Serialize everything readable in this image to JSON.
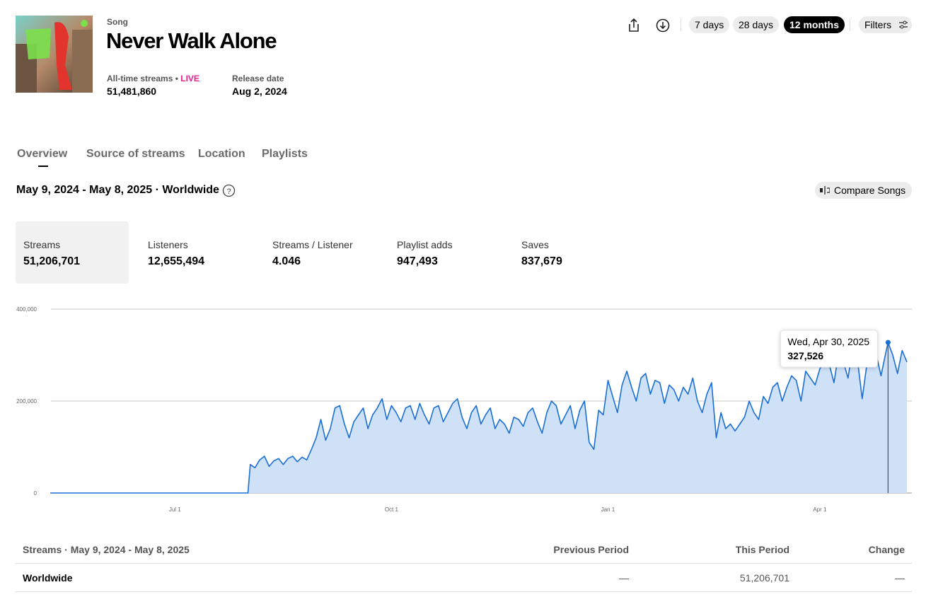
{
  "header": {
    "kind": "Song",
    "title": "Never Walk Alone",
    "alltime_label": "All-time streams",
    "live": "LIVE",
    "alltime_value": "51,481,860",
    "release_label": "Release date",
    "release_value": "Aug 2, 2024"
  },
  "range_buttons": [
    "7 days",
    "28 days",
    "12 months"
  ],
  "active_range": 2,
  "filters": "Filters",
  "tabs": [
    "Overview",
    "Source of streams",
    "Location",
    "Playlists"
  ],
  "active_tab": 0,
  "period": "May 9, 2024 - May 8, 2025 · Worldwide",
  "compare": "Compare Songs",
  "metrics": [
    {
      "label": "Streams",
      "value": "51,206,701"
    },
    {
      "label": "Listeners",
      "value": "12,655,494"
    },
    {
      "label": "Streams / Listener",
      "value": "4.046"
    },
    {
      "label": "Playlist adds",
      "value": "947,493"
    },
    {
      "label": "Saves",
      "value": "837,679"
    }
  ],
  "chart_data": {
    "type": "area",
    "color": "#1a6fd4",
    "fill": "#cfe1f7",
    "grid": true,
    "xlim": [
      0,
      364
    ],
    "xticks": [
      {
        "value": 53,
        "label": "Jul 1"
      },
      {
        "value": 145,
        "label": "Oct 1"
      },
      {
        "value": 237,
        "label": "Jan 1"
      },
      {
        "value": 327,
        "label": "Apr 1"
      }
    ],
    "ylim": [
      0,
      400000
    ],
    "yticks": [
      {
        "value": 0,
        "label": "0"
      },
      {
        "value": 200000,
        "label": "200,000"
      },
      {
        "value": 400000,
        "label": "400,000"
      }
    ],
    "x": [
      0,
      84,
      85,
      87,
      89,
      91,
      93,
      95,
      97,
      99,
      101,
      103,
      105,
      107,
      109,
      111,
      113,
      115,
      117,
      119,
      121,
      123,
      125,
      127,
      129,
      131,
      133,
      135,
      137,
      139,
      141,
      143,
      145,
      147,
      149,
      151,
      153,
      155,
      157,
      159,
      161,
      163,
      165,
      167,
      169,
      171,
      173,
      175,
      177,
      179,
      181,
      183,
      185,
      187,
      189,
      191,
      193,
      195,
      197,
      199,
      201,
      203,
      205,
      207,
      209,
      211,
      213,
      215,
      217,
      219,
      221,
      223,
      225,
      227,
      229,
      231,
      233,
      235,
      237,
      239,
      241,
      243,
      245,
      247,
      249,
      251,
      253,
      255,
      257,
      259,
      261,
      263,
      265,
      267,
      269,
      271,
      273,
      275,
      277,
      279,
      281,
      283,
      285,
      287,
      289,
      291,
      293,
      295,
      297,
      299,
      301,
      303,
      305,
      307,
      309,
      311,
      313,
      315,
      317,
      319,
      321,
      323,
      325,
      327,
      329,
      331,
      333,
      335,
      337,
      339,
      341,
      343,
      345,
      347,
      349,
      351,
      353,
      355,
      356,
      358,
      360,
      362,
      364
    ],
    "values": [
      0,
      0,
      62000,
      55000,
      72000,
      80000,
      58000,
      70000,
      75000,
      62000,
      75000,
      80000,
      68000,
      78000,
      72000,
      95000,
      120000,
      160000,
      115000,
      140000,
      185000,
      190000,
      150000,
      120000,
      155000,
      170000,
      185000,
      140000,
      170000,
      185000,
      205000,
      160000,
      190000,
      175000,
      155000,
      185000,
      190000,
      160000,
      195000,
      170000,
      150000,
      185000,
      190000,
      155000,
      175000,
      195000,
      205000,
      165000,
      140000,
      175000,
      190000,
      150000,
      170000,
      185000,
      140000,
      160000,
      150000,
      130000,
      165000,
      160000,
      145000,
      175000,
      185000,
      155000,
      130000,
      175000,
      200000,
      190000,
      150000,
      170000,
      190000,
      140000,
      180000,
      200000,
      110000,
      95000,
      180000,
      170000,
      245000,
      210000,
      175000,
      235000,
      265000,
      230000,
      200000,
      250000,
      260000,
      215000,
      245000,
      240000,
      195000,
      235000,
      225000,
      200000,
      230000,
      215000,
      250000,
      200000,
      175000,
      215000,
      240000,
      120000,
      175000,
      140000,
      150000,
      135000,
      150000,
      165000,
      200000,
      175000,
      160000,
      210000,
      195000,
      230000,
      240000,
      200000,
      230000,
      255000,
      245000,
      200000,
      265000,
      250000,
      235000,
      270000,
      290000,
      280000,
      240000,
      305000,
      285000,
      250000,
      318000,
      290000,
      205000,
      280000,
      310000,
      300000,
      255000,
      305000,
      327526,
      300000,
      260000,
      310000,
      285000
    ],
    "tooltip": {
      "date": "Wed, Apr 30, 2025",
      "value": 327526,
      "value_label": "327,526"
    }
  },
  "table": {
    "header": [
      "Streams · May 9, 2024 - May 8, 2025",
      "Previous Period",
      "This Period",
      "Change"
    ],
    "rows": [
      [
        "Worldwide",
        "—",
        "51,206,701",
        "—"
      ]
    ]
  }
}
